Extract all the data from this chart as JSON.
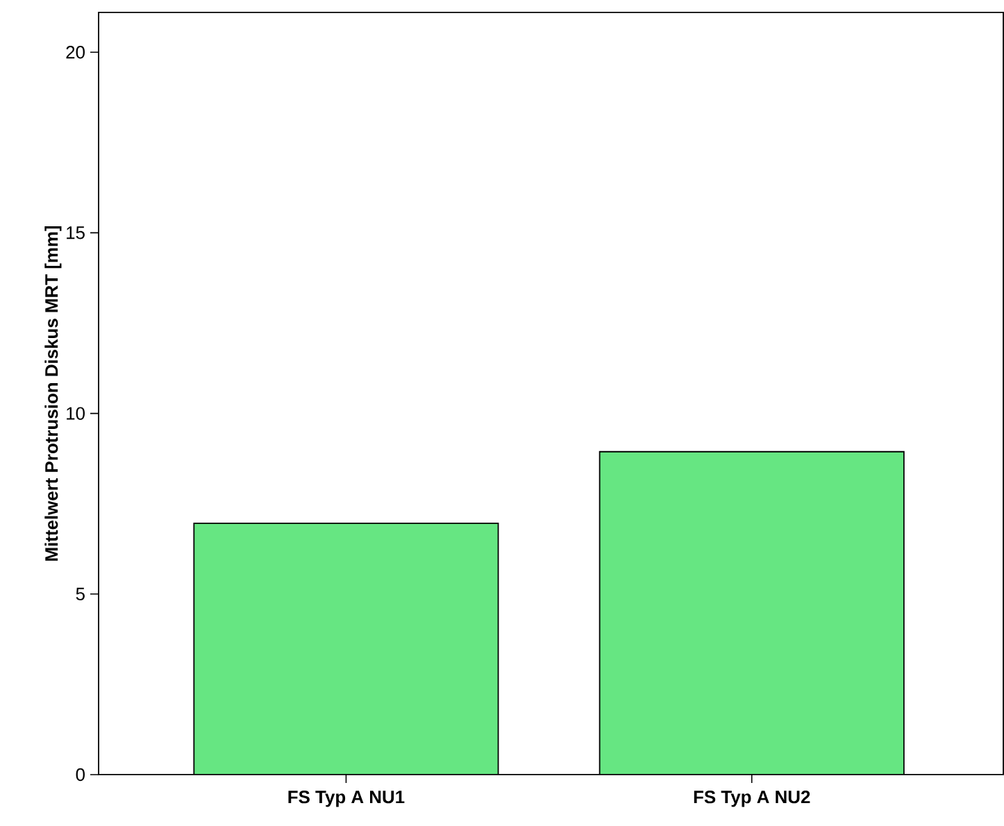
{
  "chart_data": {
    "type": "bar",
    "ylabel": "Mittelwert Protrusion Diskus MRT [mm]",
    "categories": [
      "FS Typ A NU1",
      "FS Typ A NU2"
    ],
    "values": [
      6.96,
      8.94
    ],
    "colors": [
      "#66e682",
      "#66e682"
    ],
    "ylim": [
      0,
      21.1
    ],
    "yticks": [
      0,
      5,
      10,
      15,
      20
    ],
    "grid": false
  }
}
